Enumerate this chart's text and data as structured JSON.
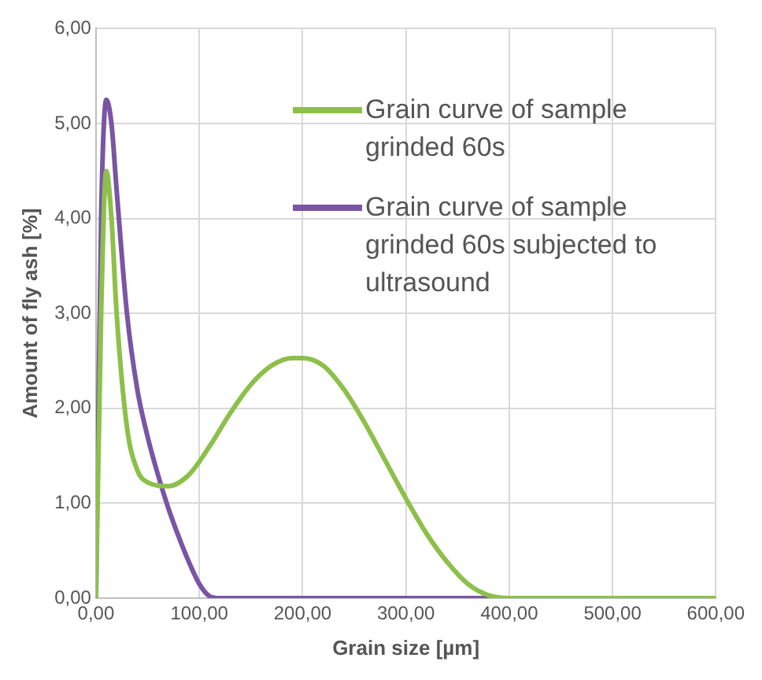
{
  "chart_data": {
    "type": "line",
    "xlabel": "Grain size [µm]",
    "ylabel": "Amount of fly ash [%]",
    "xlim": [
      0,
      600
    ],
    "ylim": [
      0,
      6
    ],
    "xticks": [
      {
        "value": 0,
        "label": "0,00"
      },
      {
        "value": 100,
        "label": "100,00"
      },
      {
        "value": 200,
        "label": "200,00"
      },
      {
        "value": 300,
        "label": "300,00"
      },
      {
        "value": 400,
        "label": "400,00"
      },
      {
        "value": 500,
        "label": "500,00"
      },
      {
        "value": 600,
        "label": "600,00"
      }
    ],
    "yticks": [
      {
        "value": 0,
        "label": "0,00"
      },
      {
        "value": 1,
        "label": "1,00"
      },
      {
        "value": 2,
        "label": "2,00"
      },
      {
        "value": 3,
        "label": "3,00"
      },
      {
        "value": 4,
        "label": "4,00"
      },
      {
        "value": 5,
        "label": "5,00"
      },
      {
        "value": 6,
        "label": "6,00"
      }
    ],
    "grid": true,
    "legend": "top right",
    "marker": "none",
    "line_style": "solid",
    "series": [
      {
        "name": "Grain curve of sample grinded 60s",
        "color": "#8dc04a",
        "x": [
          0,
          5,
          10,
          15,
          20,
          30,
          40,
          50,
          70,
          90,
          110,
          130,
          150,
          170,
          190,
          200,
          220,
          240,
          260,
          280,
          300,
          320,
          340,
          360,
          380,
          400,
          500,
          600
        ],
        "values": [
          0,
          3.0,
          4.5,
          4.0,
          3.0,
          1.8,
          1.35,
          1.22,
          1.18,
          1.3,
          1.6,
          1.95,
          2.25,
          2.45,
          2.53,
          2.53,
          2.45,
          2.2,
          1.85,
          1.45,
          1.05,
          0.68,
          0.38,
          0.15,
          0.03,
          0,
          0,
          0
        ]
      },
      {
        "name": "Grain curve of sample grinded 60s subjected to ultrasound",
        "color": "#7a55a4",
        "x": [
          0,
          5,
          10,
          15,
          20,
          30,
          40,
          50,
          60,
          70,
          80,
          90,
          100,
          110,
          120,
          300,
          600
        ],
        "values": [
          0,
          4.0,
          5.25,
          5.0,
          4.3,
          3.0,
          2.2,
          1.7,
          1.3,
          0.95,
          0.65,
          0.38,
          0.15,
          0.02,
          0,
          0,
          0
        ]
      }
    ]
  }
}
